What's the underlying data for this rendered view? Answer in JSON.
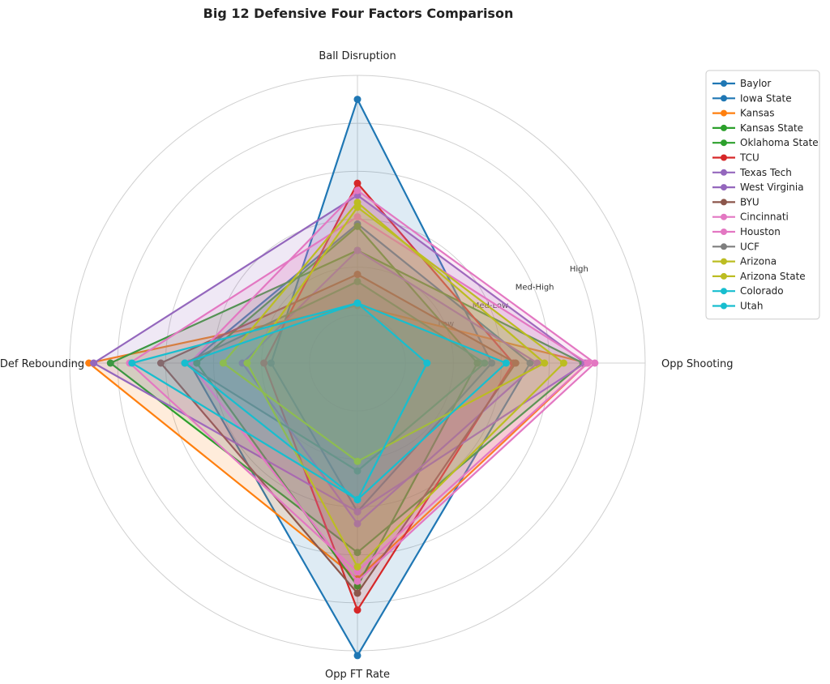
{
  "chart_data": {
    "type": "radar",
    "title": "Big 12 Defensive Four Factors Comparison",
    "axes": [
      "Ball Disruption",
      "Opp Shooting",
      "Opp FT Rate",
      "Def Rebounding"
    ],
    "scale": {
      "rlim": [
        0,
        1.2
      ],
      "ring_values": [
        0.2,
        0.4,
        0.6,
        0.8,
        1.0,
        1.2
      ],
      "ring_labels": [
        "Low",
        "Med-Low",
        "Med-High",
        "High"
      ]
    },
    "legend_position": "upper-right-outside",
    "series": [
      {
        "name": "Baylor",
        "color": "#1f77b4",
        "values": [
          1.1,
          0.56,
          0.62,
          0.36
        ]
      },
      {
        "name": "Iowa State",
        "color": "#1f77b4",
        "values": [
          0.58,
          0.72,
          1.22,
          0.7
        ]
      },
      {
        "name": "Kansas",
        "color": "#ff7f0e",
        "values": [
          0.24,
          0.96,
          0.9,
          1.12
        ]
      },
      {
        "name": "Kansas State",
        "color": "#2ca02c",
        "values": [
          0.57,
          0.5,
          0.93,
          0.67
        ]
      },
      {
        "name": "Oklahoma State",
        "color": "#2ca02c",
        "values": [
          0.47,
          0.94,
          0.79,
          1.03
        ]
      },
      {
        "name": "TCU",
        "color": "#d62728",
        "values": [
          0.75,
          0.65,
          1.03,
          0.39
        ]
      },
      {
        "name": "Texas Tech",
        "color": "#9467bd",
        "values": [
          0.47,
          0.75,
          0.67,
          0.48
        ]
      },
      {
        "name": "West Virginia",
        "color": "#9467bd",
        "values": [
          0.7,
          0.95,
          0.62,
          1.1
        ]
      },
      {
        "name": "BYU",
        "color": "#8c564b",
        "values": [
          0.37,
          0.66,
          0.96,
          0.82
        ]
      },
      {
        "name": "Cincinnati",
        "color": "#e377c2",
        "values": [
          0.61,
          0.96,
          0.87,
          0.95
        ]
      },
      {
        "name": "Houston",
        "color": "#e377c2",
        "values": [
          0.72,
          0.99,
          0.91,
          0.7
        ]
      },
      {
        "name": "UCF",
        "color": "#7f7f7f",
        "values": [
          0.34,
          0.53,
          0.45,
          0.72
        ]
      },
      {
        "name": "Arizona",
        "color": "#bcbd22",
        "values": [
          0.67,
          0.78,
          0.41,
          0.56
        ]
      },
      {
        "name": "Arizona State",
        "color": "#bcbd22",
        "values": [
          0.65,
          0.86,
          0.85,
          0.46
        ]
      },
      {
        "name": "Colorado",
        "color": "#17becf",
        "values": [
          0.25,
          0.62,
          0.57,
          0.94
        ]
      },
      {
        "name": "Utah",
        "color": "#17becf",
        "values": [
          0.25,
          0.29,
          0.57,
          0.72
        ]
      }
    ]
  }
}
